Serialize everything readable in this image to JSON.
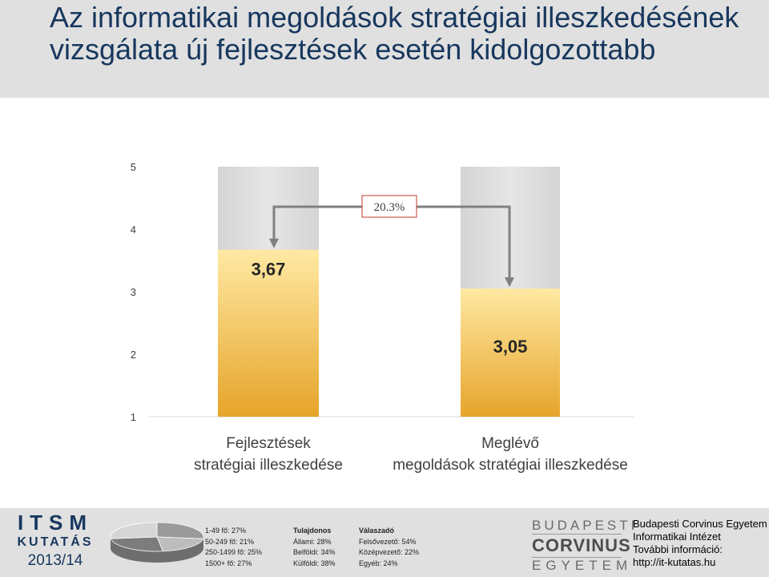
{
  "title": "Az informatikai megoldások stratégiai illeszkedésének vizsgálata új fejlesztések esetén kidolgozottabb",
  "chart_data": {
    "type": "bar",
    "categories": [
      "Fejlesztések stratégiai illeszkedése",
      "Meglévő megoldások stratégiai illeszkedése"
    ],
    "values": [
      3.67,
      3.05
    ],
    "value_labels": [
      "3,67",
      "3,05"
    ],
    "ylim": [
      1,
      5
    ],
    "yticks": [
      "1",
      "2",
      "3",
      "4",
      "5"
    ],
    "annotation": "20.3%",
    "grid": false,
    "colors": {
      "bar_top": "#ffe9a3",
      "bar_bottom": "#e6a42a",
      "background": "#e6e6e6",
      "annotation_border": "#c0392b",
      "arrow": "#808080"
    }
  },
  "footer": {
    "itsm": {
      "line1": "ITSM",
      "line2": "KUTATÁS",
      "line3": "2013/14"
    },
    "pie_colors": [
      "#9a9a9a",
      "#bdbdbd",
      "#7c7c7c",
      "#d6d6d6"
    ],
    "col1": {
      "items": [
        "1-49 fő: 27%",
        "50-249 fő: 21%",
        "250-1499 fő: 25%",
        "1500+ fő: 27%"
      ]
    },
    "col2": {
      "heading": "Tulajdonos",
      "items": [
        "Állami: 28%",
        "Belföldi: 34%",
        "Külföldi: 38%"
      ]
    },
    "col3": {
      "heading": "Válaszadó",
      "items": [
        "Felsővezető: 54%",
        "Középvezető: 22%",
        "Egyéb: 24%"
      ]
    },
    "logo": {
      "line1": "BUDAPESTI",
      "line2": "CORVINUS",
      "line3": "EGYETEM"
    },
    "info": [
      "Budapesti Corvinus Egyetem",
      "Informatikai Intézet",
      "További információ:",
      "http://it-kutatas.hu"
    ]
  }
}
